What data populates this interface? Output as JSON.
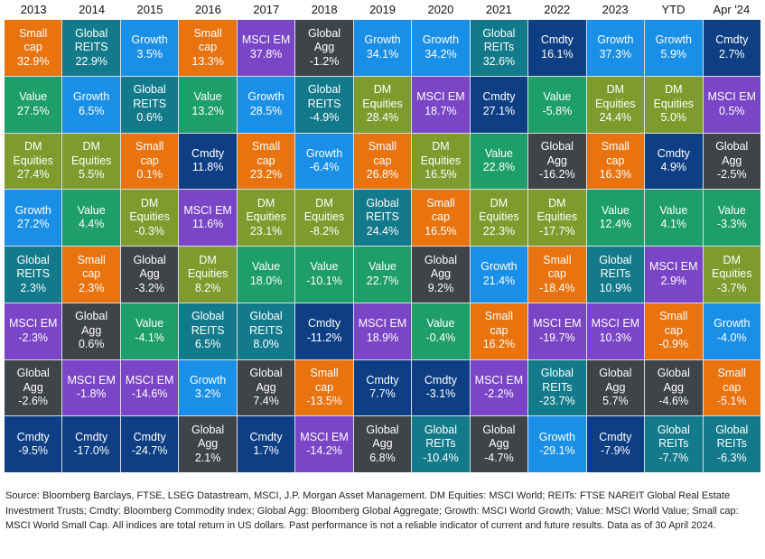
{
  "colors": {
    "Small cap": "#E8730F",
    "Global REITS": "#127A8A",
    "Global REITs": "#127A8A",
    "Growth": "#1A8FE8",
    "Value": "#1E9E6A",
    "DM Equities": "#7E9C2E",
    "MSCI EM": "#7A45C6",
    "Global Agg": "#3F4449",
    "Cmdty": "#0E3F84"
  },
  "chart_data": {
    "type": "table",
    "categories": [
      "2013",
      "2014",
      "2015",
      "2016",
      "2017",
      "2018",
      "2019",
      "2020",
      "2021",
      "2022",
      "2023",
      "YTD",
      "Apr '24"
    ],
    "columns": [
      {
        "cells": [
          [
            "Small cap",
            32.9
          ],
          [
            "Value",
            27.5
          ],
          [
            "DM Equities",
            27.4
          ],
          [
            "Growth",
            27.2
          ],
          [
            "Global REITS",
            2.3
          ],
          [
            "MSCI EM",
            -2.3
          ],
          [
            "Global Agg",
            -2.6
          ],
          [
            "Cmdty",
            -9.5
          ]
        ]
      },
      {
        "cells": [
          [
            "Global REITS",
            22.9
          ],
          [
            "Growth",
            6.5
          ],
          [
            "DM Equities",
            5.5
          ],
          [
            "Value",
            4.4
          ],
          [
            "Small cap",
            2.3
          ],
          [
            "Global Agg",
            0.6
          ],
          [
            "MSCI EM",
            -1.8
          ],
          [
            "Cmdty",
            -17.0
          ]
        ]
      },
      {
        "cells": [
          [
            "Growth",
            3.5
          ],
          [
            "Global REITS",
            0.6
          ],
          [
            "Small cap",
            0.1
          ],
          [
            "DM Equities",
            -0.3
          ],
          [
            "Global Agg",
            -3.2
          ],
          [
            "Value",
            -4.1
          ],
          [
            "MSCI EM",
            -14.6
          ],
          [
            "Cmdty",
            -24.7
          ]
        ]
      },
      {
        "cells": [
          [
            "Small cap",
            13.3
          ],
          [
            "Value",
            13.2
          ],
          [
            "Cmdty",
            11.8
          ],
          [
            "MSCI EM",
            11.6
          ],
          [
            "DM Equities",
            8.2
          ],
          [
            "Global REITS",
            6.5
          ],
          [
            "Growth",
            3.2
          ],
          [
            "Global Agg",
            2.1
          ]
        ]
      },
      {
        "cells": [
          [
            "MSCI EM",
            37.8
          ],
          [
            "Growth",
            28.5
          ],
          [
            "Small cap",
            23.2
          ],
          [
            "DM Equities",
            23.1
          ],
          [
            "Value",
            18.0
          ],
          [
            "Global REITS",
            8.0
          ],
          [
            "Global Agg",
            7.4
          ],
          [
            "Cmdty",
            1.7
          ]
        ]
      },
      {
        "cells": [
          [
            "Global Agg",
            -1.2
          ],
          [
            "Global REITS",
            -4.9
          ],
          [
            "Growth",
            -6.4
          ],
          [
            "DM Equities",
            -8.2
          ],
          [
            "Value",
            -10.1
          ],
          [
            "Cmdty",
            -11.2
          ],
          [
            "Small cap",
            -13.5
          ],
          [
            "MSCI EM",
            -14.2
          ]
        ]
      },
      {
        "cells": [
          [
            "Growth",
            34.1
          ],
          [
            "DM Equities",
            28.4
          ],
          [
            "Small cap",
            26.8
          ],
          [
            "Global REITS",
            24.4
          ],
          [
            "Value",
            22.7
          ],
          [
            "MSCI EM",
            18.9
          ],
          [
            "Cmdty",
            7.7
          ],
          [
            "Global Agg",
            6.8
          ]
        ]
      },
      {
        "cells": [
          [
            "Growth",
            34.2
          ],
          [
            "MSCI EM",
            18.7
          ],
          [
            "DM Equities",
            16.5
          ],
          [
            "Small cap",
            16.5
          ],
          [
            "Global Agg",
            9.2
          ],
          [
            "Value",
            -0.4
          ],
          [
            "Cmdty",
            -3.1
          ],
          [
            "Global REITs",
            -10.4
          ]
        ]
      },
      {
        "cells": [
          [
            "Global REITs",
            32.6
          ],
          [
            "Cmdty",
            27.1
          ],
          [
            "Value",
            22.8
          ],
          [
            "DM Equities",
            22.3
          ],
          [
            "Growth",
            21.4
          ],
          [
            "Small cap",
            16.2
          ],
          [
            "MSCI EM",
            -2.2
          ],
          [
            "Global Agg",
            -4.7
          ]
        ]
      },
      {
        "cells": [
          [
            "Cmdty",
            16.1
          ],
          [
            "Value",
            -5.8
          ],
          [
            "Global Agg",
            -16.2
          ],
          [
            "DM Equities",
            -17.7
          ],
          [
            "Small cap",
            -18.4
          ],
          [
            "MSCI EM",
            -19.7
          ],
          [
            "Global REITs",
            -23.7
          ],
          [
            "Growth",
            -29.1
          ]
        ]
      },
      {
        "cells": [
          [
            "Growth",
            37.3
          ],
          [
            "DM Equities",
            24.4
          ],
          [
            "Small cap",
            16.3
          ],
          [
            "Value",
            12.4
          ],
          [
            "Global REITs",
            10.9
          ],
          [
            "MSCI EM",
            10.3
          ],
          [
            "Global Agg",
            5.7
          ],
          [
            "Cmdty",
            -7.9
          ]
        ]
      },
      {
        "cells": [
          [
            "Growth",
            5.9
          ],
          [
            "DM Equities",
            5.0
          ],
          [
            "Cmdty",
            4.9
          ],
          [
            "Value",
            4.1
          ],
          [
            "MSCI EM",
            2.9
          ],
          [
            "Small cap",
            -0.9
          ],
          [
            "Global Agg",
            -4.6
          ],
          [
            "Global REITs",
            -7.7
          ]
        ]
      },
      {
        "cells": [
          [
            "Cmdty",
            2.7
          ],
          [
            "MSCI EM",
            0.5
          ],
          [
            "Global Agg",
            -2.5
          ],
          [
            "Value",
            -3.3
          ],
          [
            "DM Equities",
            -3.7
          ],
          [
            "Growth",
            -4.0
          ],
          [
            "Small cap",
            -5.1
          ],
          [
            "Global REITs",
            -6.3
          ]
        ]
      }
    ]
  },
  "footer": "Source: Bloomberg Barclays, FTSE, LSEG Datastream, MSCI, J.P. Morgan Asset Management. DM Equities: MSCI World; REITs: FTSE NAREIT Global Real Estate Investment Trusts; Cmdty: Bloomberg Commodity Index; Global Agg: Bloomberg Global Aggregate; Growth: MSCI World Growth; Value: MSCI World Value; Small cap: MSCI World Small Cap. All indices are total return in US dollars. Past performance is not a reliable indicator of current and future results. Data as of 30 April 2024."
}
